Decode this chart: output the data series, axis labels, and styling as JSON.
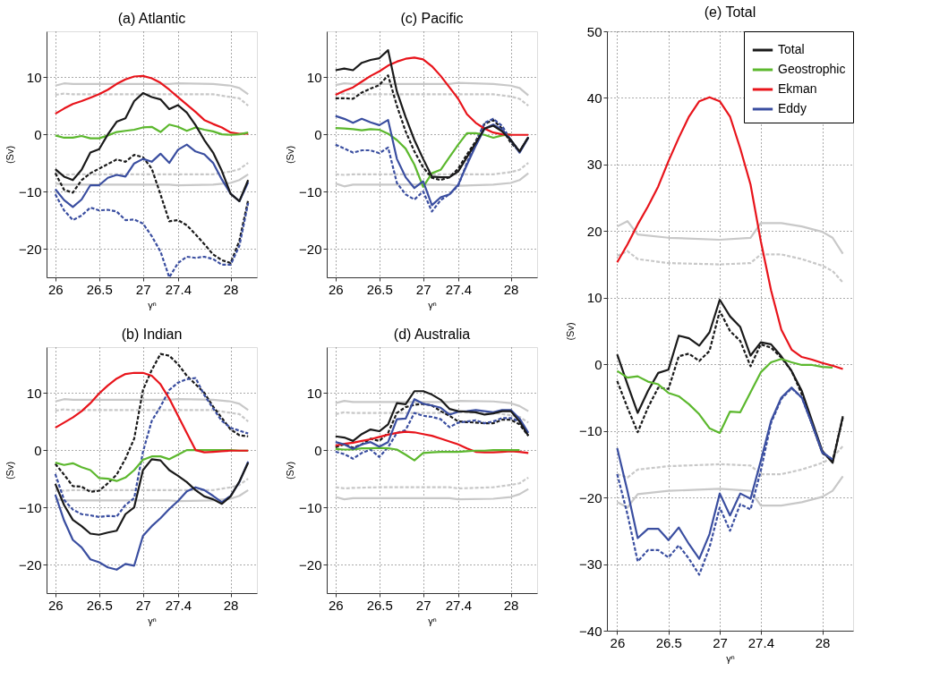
{
  "chart_data": [
    {
      "type": "line",
      "title": "(a) Atlantic",
      "xlabel": "γⁿ",
      "ylabel": "(Sv)",
      "xlim": [
        25.9,
        28.3
      ],
      "xticks": [
        26,
        26.5,
        27,
        27.4,
        28
      ],
      "ylim": [
        -25,
        18
      ],
      "yticks": [
        -20,
        -10,
        0,
        10
      ],
      "grid": true,
      "legend": false,
      "x": [
        26.0,
        26.1,
        26.2,
        26.3,
        26.4,
        26.5,
        26.6,
        26.7,
        26.8,
        26.9,
        27.0,
        27.1,
        27.2,
        27.3,
        27.4,
        27.5,
        27.6,
        27.7,
        27.8,
        27.9,
        28.0,
        28.1,
        28.2
      ],
      "series": [
        {
          "color": "#c8c8c8",
          "x": [
            26,
            26.1,
            26.2,
            26.5,
            27,
            27.3,
            27.4,
            27.8,
            28,
            28.1,
            28.2
          ],
          "values": [
            8.5,
            8.9,
            8.8,
            8.8,
            8.8,
            8.8,
            8.9,
            8.8,
            8.5,
            8.1,
            7.0
          ]
        },
        {
          "color": "#c8c8c8",
          "line_style": "dashed",
          "x": [
            26,
            26.1,
            26.2,
            26.5,
            27,
            27.3,
            27.4,
            27.8,
            28,
            28.1,
            28.2
          ],
          "values": [
            6.9,
            7.1,
            7.0,
            7.0,
            7.0,
            7.0,
            7.0,
            7.0,
            6.5,
            6.3,
            5.0
          ]
        },
        {
          "color": "#c8c8c8",
          "line_style": "dashed",
          "x": [
            26,
            26.1,
            26.2,
            26.5,
            27,
            27.3,
            27.4,
            27.8,
            28,
            28.1,
            28.2
          ],
          "values": [
            -6.9,
            -7.1,
            -7.0,
            -7.0,
            -7.0,
            -7.0,
            -7.0,
            -7.0,
            -6.5,
            -6.1,
            -5.0
          ]
        },
        {
          "color": "#c8c8c8",
          "x": [
            26,
            26.1,
            26.2,
            26.5,
            27,
            27.3,
            27.4,
            27.8,
            28,
            28.1,
            28.2
          ],
          "values": [
            -8.6,
            -8.8,
            -8.8,
            -8.8,
            -8.8,
            -8.8,
            -8.9,
            -8.8,
            -8.5,
            -8.0,
            -7.0
          ]
        },
        {
          "color": "#1a1a1a",
          "line_style": "dashed",
          "values": [
            -6.8,
            -9.7,
            -10.2,
            -8.0,
            -6.8,
            -6.0,
            -5.2,
            -4.4,
            -4.8,
            -3.6,
            -4.0,
            -6.0,
            -10.5,
            -15.2,
            -15.0,
            -15.9,
            -17.5,
            -19.2,
            -21.0,
            -22.0,
            -22.5,
            -18.6,
            -11.5
          ]
        },
        {
          "color": "#3a4ea0",
          "line_style": "dashed",
          "values": [
            -10.5,
            -13.3,
            -15.0,
            -14.2,
            -12.8,
            -13.3,
            -13.2,
            -13.5,
            -15.0,
            -14.9,
            -15.6,
            -17.8,
            -20.5,
            -25.0,
            -22.5,
            -21.4,
            -21.6,
            -21.4,
            -21.8,
            -22.8,
            -22.8,
            -19.5,
            -12.0
          ]
        },
        {
          "color": "#e8141b",
          "values": [
            3.6,
            4.5,
            5.3,
            5.8,
            6.4,
            7.0,
            7.8,
            8.8,
            9.6,
            10.1,
            10.2,
            9.8,
            9.0,
            7.8,
            6.5,
            5.2,
            3.9,
            2.5,
            1.8,
            1.2,
            0.3,
            0.1,
            0.1
          ]
        },
        {
          "color": "#5cb82e",
          "values": [
            -0.2,
            -0.6,
            -0.6,
            -0.3,
            -0.7,
            -0.7,
            -0.2,
            0.4,
            0.6,
            0.8,
            1.2,
            1.3,
            0.4,
            1.7,
            1.3,
            0.6,
            1.2,
            0.8,
            0.5,
            0.0,
            -0.1,
            0.0,
            0.3
          ]
        },
        {
          "color": "#3a4ea0",
          "values": [
            -9.6,
            -11.5,
            -12.7,
            -11.4,
            -8.9,
            -8.9,
            -7.6,
            -7.1,
            -7.4,
            -5.1,
            -4.3,
            -4.8,
            -3.4,
            -5.0,
            -2.7,
            -1.8,
            -3.0,
            -3.5,
            -5.0,
            -7.9,
            -10.4,
            -11.7,
            -8.4
          ]
        },
        {
          "color": "#1a1a1a",
          "values": [
            -6.1,
            -7.4,
            -8.0,
            -6.2,
            -3.2,
            -2.6,
            0.0,
            2.2,
            2.8,
            5.8,
            7.2,
            6.5,
            6.1,
            4.4,
            5.1,
            3.8,
            1.6,
            -1.0,
            -3.2,
            -6.4,
            -10.4,
            -11.7,
            -8.0
          ]
        }
      ]
    },
    {
      "type": "line",
      "title": "(b) Indian",
      "xlabel": "γⁿ",
      "ylabel": "(Sv)",
      "xlim": [
        25.9,
        28.3
      ],
      "xticks": [
        26,
        26.5,
        27,
        27.4,
        28
      ],
      "ylim": [
        -25,
        18
      ],
      "yticks": [
        -20,
        -10,
        0,
        10
      ],
      "grid": true,
      "legend": false,
      "x": [
        26.0,
        26.1,
        26.2,
        26.3,
        26.4,
        26.5,
        26.6,
        26.7,
        26.8,
        26.9,
        27.0,
        27.1,
        27.2,
        27.3,
        27.4,
        27.5,
        27.6,
        27.7,
        27.8,
        27.9,
        28.0,
        28.1,
        28.2
      ],
      "series": [
        {
          "color": "#c8c8c8",
          "x": [
            26,
            26.1,
            26.2,
            26.5,
            27,
            27.3,
            27.4,
            27.8,
            28,
            28.1,
            28.2
          ],
          "values": [
            8.5,
            8.9,
            8.8,
            8.8,
            8.8,
            8.8,
            8.9,
            8.8,
            8.5,
            8.1,
            7.0
          ]
        },
        {
          "color": "#c8c8c8",
          "line_style": "dashed",
          "x": [
            26,
            26.1,
            26.2,
            26.5,
            27,
            27.3,
            27.4,
            27.8,
            28,
            28.1,
            28.2
          ],
          "values": [
            6.9,
            7.1,
            7.0,
            7.0,
            7.0,
            7.0,
            7.0,
            7.0,
            6.5,
            6.3,
            5.0
          ]
        },
        {
          "color": "#c8c8c8",
          "line_style": "dashed",
          "x": [
            26,
            26.1,
            26.2,
            26.5,
            27,
            27.3,
            27.4,
            27.8,
            28,
            28.1,
            28.2
          ],
          "values": [
            -6.9,
            -7.1,
            -7.0,
            -7.0,
            -7.0,
            -7.0,
            -7.0,
            -7.0,
            -6.5,
            -6.1,
            -5.0
          ]
        },
        {
          "color": "#c8c8c8",
          "x": [
            26,
            26.1,
            26.2,
            26.5,
            27,
            27.3,
            27.4,
            27.8,
            28,
            28.1,
            28.2
          ],
          "values": [
            -8.6,
            -8.8,
            -8.8,
            -8.8,
            -8.8,
            -8.8,
            -8.9,
            -8.8,
            -8.5,
            -8.0,
            -7.0
          ]
        },
        {
          "color": "#1a1a1a",
          "line_style": "dashed",
          "values": [
            -2.4,
            -4.3,
            -6.3,
            -6.4,
            -7.3,
            -7.1,
            -5.8,
            -4.3,
            -1.5,
            2.0,
            10.5,
            14.0,
            16.8,
            16.5,
            15.0,
            13.0,
            11.5,
            10.0,
            7.6,
            5.6,
            3.6,
            2.6,
            2.4
          ]
        },
        {
          "color": "#3a4ea0",
          "line_style": "dashed",
          "values": [
            -4.2,
            -8.7,
            -10.4,
            -11.2,
            -11.4,
            -11.7,
            -11.5,
            -11.6,
            -9.6,
            -8.4,
            -0.3,
            5.1,
            7.6,
            10.5,
            11.8,
            12.4,
            12.6,
            9.6,
            7.3,
            5.1,
            3.9,
            3.4,
            2.9
          ]
        },
        {
          "color": "#5cb82e",
          "values": [
            -2.2,
            -2.6,
            -2.3,
            -3.0,
            -3.5,
            -4.9,
            -5.0,
            -5.4,
            -4.8,
            -3.5,
            -1.7,
            -1.1,
            -1.1,
            -1.6,
            -0.8,
            0.0,
            0.0,
            0.0,
            0.0,
            0.0,
            0.0,
            -0.1,
            -0.1
          ]
        },
        {
          "color": "#e8141b",
          "values": [
            3.9,
            4.8,
            5.7,
            6.8,
            8.2,
            9.9,
            11.3,
            12.5,
            13.3,
            13.5,
            13.5,
            13.0,
            11.5,
            9.0,
            6.0,
            3.0,
            0.0,
            -0.4,
            -0.3,
            -0.2,
            -0.1,
            -0.1,
            -0.1
          ]
        },
        {
          "color": "#3a4ea0",
          "values": [
            -7.8,
            -12.3,
            -15.7,
            -17.0,
            -19.1,
            -19.6,
            -20.5,
            -20.9,
            -19.9,
            -20.2,
            -15.0,
            -13.3,
            -11.9,
            -10.3,
            -8.9,
            -7.2,
            -6.5,
            -7.0,
            -8.0,
            -9.1,
            -8.0,
            -5.6,
            -2.0
          ]
        },
        {
          "color": "#1a1a1a",
          "values": [
            -5.9,
            -9.6,
            -12.2,
            -13.3,
            -14.6,
            -14.8,
            -14.4,
            -14.1,
            -11.2,
            -10.0,
            -3.5,
            -1.6,
            -1.8,
            -3.5,
            -4.5,
            -5.6,
            -7.0,
            -8.1,
            -8.6,
            -9.4,
            -8.1,
            -5.5,
            -2.2
          ]
        }
      ]
    },
    {
      "type": "line",
      "title": "(c) Pacific",
      "xlabel": "γⁿ",
      "ylabel": "(Sv)",
      "xlim": [
        25.9,
        28.3
      ],
      "xticks": [
        26,
        26.5,
        27,
        27.4,
        28
      ],
      "ylim": [
        -25,
        18
      ],
      "yticks": [
        -20,
        -10,
        0,
        10
      ],
      "grid": true,
      "legend": false,
      "x": [
        26.0,
        26.1,
        26.2,
        26.3,
        26.4,
        26.5,
        26.6,
        26.7,
        26.8,
        26.9,
        27.0,
        27.1,
        27.2,
        27.3,
        27.4,
        27.5,
        27.6,
        27.7,
        27.8,
        27.9,
        28.0,
        28.1,
        28.2
      ],
      "series": [
        {
          "color": "#c8c8c8",
          "x": [
            26,
            26.1,
            26.2,
            26.5,
            27,
            27.3,
            27.4,
            27.8,
            28,
            28.1,
            28.2
          ],
          "values": [
            8.6,
            8.9,
            8.8,
            8.8,
            8.8,
            8.8,
            9.0,
            8.8,
            8.5,
            8.1,
            6.8
          ]
        },
        {
          "color": "#c8c8c8",
          "line_style": "dashed",
          "x": [
            26,
            26.1,
            26.2,
            26.5,
            27,
            27.3,
            27.4,
            27.8,
            28,
            28.1,
            28.2
          ],
          "values": [
            7.0,
            7.1,
            7.0,
            7.0,
            7.0,
            7.0,
            7.0,
            7.0,
            6.6,
            6.2,
            5.0
          ]
        },
        {
          "color": "#c8c8c8",
          "line_style": "dashed",
          "x": [
            26,
            26.1,
            26.2,
            26.5,
            27,
            27.3,
            27.4,
            27.8,
            28,
            28.1,
            28.2
          ],
          "values": [
            -7.0,
            -7.1,
            -7.0,
            -7.0,
            -7.0,
            -7.0,
            -7.0,
            -7.0,
            -6.6,
            -6.2,
            -5.0
          ]
        },
        {
          "color": "#c8c8c8",
          "x": [
            26,
            26.1,
            26.2,
            26.5,
            27,
            27.3,
            27.4,
            27.8,
            28,
            28.1,
            28.2
          ],
          "values": [
            -8.6,
            -9.1,
            -8.8,
            -8.8,
            -8.8,
            -8.8,
            -9.0,
            -8.8,
            -8.5,
            -8.0,
            -6.8
          ]
        },
        {
          "color": "#1a1a1a",
          "line_style": "dashed",
          "values": [
            6.3,
            6.3,
            6.2,
            7.3,
            8.0,
            8.6,
            10.3,
            5.0,
            0.5,
            -3.0,
            -5.8,
            -7.6,
            -8.0,
            -7.5,
            -6.0,
            -3.5,
            -1.2,
            1.8,
            2.5,
            1.0,
            -1.5,
            -3.0,
            -0.5
          ]
        },
        {
          "color": "#3a4ea0",
          "line_style": "dashed",
          "values": [
            -1.8,
            -2.5,
            -3.2,
            -2.8,
            -2.8,
            -3.3,
            -2.3,
            -8.5,
            -10.5,
            -11.4,
            -10.0,
            -13.5,
            -11.5,
            -10.5,
            -9.0,
            -5.0,
            -1.5,
            2.0,
            2.7,
            1.5,
            -1.0,
            -3.0,
            -0.5
          ]
        },
        {
          "color": "#5cb82e",
          "values": [
            1.1,
            1.0,
            0.9,
            0.7,
            0.9,
            0.8,
            0.1,
            -1.0,
            -2.5,
            -5.3,
            -9.2,
            -6.8,
            -6.2,
            -4.0,
            -1.8,
            0.2,
            0.2,
            -0.1,
            -0.6,
            -0.2,
            0.0,
            null,
            null
          ]
        },
        {
          "color": "#e8141b",
          "values": [
            6.9,
            7.6,
            8.2,
            9.2,
            10.2,
            11.0,
            12.0,
            12.7,
            13.2,
            13.4,
            13.1,
            11.9,
            10.2,
            8.2,
            6.2,
            3.5,
            2.0,
            1.0,
            0.3,
            0.0,
            -0.1,
            -0.1,
            -0.1
          ]
        },
        {
          "color": "#3a4ea0",
          "values": [
            3.2,
            2.7,
            2.0,
            2.7,
            2.1,
            1.6,
            2.5,
            -4.3,
            -7.5,
            -9.4,
            -8.2,
            -12.4,
            -11.0,
            -10.5,
            -8.8,
            -5.3,
            -2.0,
            1.0,
            1.7,
            0.8,
            -1.0,
            -3.2,
            -0.6
          ]
        },
        {
          "color": "#1a1a1a",
          "values": [
            11.2,
            11.5,
            11.2,
            12.5,
            13.0,
            13.3,
            14.7,
            7.5,
            3.0,
            -1.0,
            -4.3,
            -7.4,
            -7.5,
            -7.5,
            -6.5,
            -4.0,
            -1.5,
            1.0,
            1.5,
            0.5,
            -1.0,
            -3.0,
            -0.5
          ]
        }
      ]
    },
    {
      "type": "line",
      "title": "(d) Australia",
      "xlabel": "γⁿ",
      "ylabel": "(Sv)",
      "xlim": [
        25.9,
        28.3
      ],
      "xticks": [
        26,
        26.5,
        27,
        27.4,
        28
      ],
      "ylim": [
        -25,
        18
      ],
      "yticks": [
        -20,
        -10,
        0,
        10
      ],
      "grid": true,
      "legend": false,
      "x": [
        26.0,
        26.1,
        26.2,
        26.3,
        26.4,
        26.5,
        26.6,
        26.7,
        26.8,
        26.9,
        27.0,
        27.1,
        27.2,
        27.3,
        27.4,
        27.5,
        27.6,
        27.7,
        27.8,
        27.9,
        28.0,
        28.1,
        28.2
      ],
      "series": [
        {
          "color": "#c8c8c8",
          "x": [
            26,
            26.1,
            26.2,
            26.5,
            27,
            27.3,
            27.4,
            27.8,
            28,
            28.1,
            28.2
          ],
          "values": [
            8.2,
            8.6,
            8.4,
            8.4,
            8.4,
            8.4,
            8.6,
            8.5,
            8.2,
            7.7,
            6.8
          ]
        },
        {
          "color": "#c8c8c8",
          "line_style": "dashed",
          "x": [
            26,
            26.1,
            26.2,
            26.5,
            27,
            27.3,
            27.4,
            27.8,
            28,
            28.1,
            28.2
          ],
          "values": [
            6.3,
            6.6,
            6.5,
            6.5,
            6.5,
            6.5,
            6.6,
            6.5,
            6.1,
            5.8,
            4.8
          ]
        },
        {
          "color": "#c8c8c8",
          "line_style": "dashed",
          "x": [
            26,
            26.1,
            26.2,
            26.5,
            27,
            27.3,
            27.4,
            27.8,
            28,
            28.1,
            28.2
          ],
          "values": [
            -6.5,
            -6.7,
            -6.6,
            -6.5,
            -6.5,
            -6.5,
            -6.7,
            -6.5,
            -6.1,
            -5.8,
            -4.8
          ]
        },
        {
          "color": "#c8c8c8",
          "x": [
            26,
            26.1,
            26.2,
            26.5,
            27,
            27.3,
            27.4,
            27.8,
            28,
            28.1,
            28.2
          ],
          "values": [
            -8.2,
            -8.6,
            -8.4,
            -8.4,
            -8.4,
            -8.4,
            -8.6,
            -8.5,
            -8.2,
            -7.7,
            -6.8
          ]
        },
        {
          "color": "#1a1a1a",
          "line_style": "dashed",
          "values": [
            0.5,
            1.0,
            0.4,
            1.0,
            2.0,
            1.6,
            3.0,
            6.5,
            7.5,
            7.9,
            8.1,
            7.8,
            6.8,
            6.0,
            5.0,
            4.9,
            4.8,
            4.7,
            4.7,
            5.3,
            5.3,
            4.5,
            2.5
          ]
        },
        {
          "color": "#3a4ea0",
          "line_style": "dashed",
          "values": [
            -0.3,
            -0.7,
            -1.5,
            -0.5,
            0.1,
            -1.2,
            0.5,
            3.0,
            3.5,
            6.5,
            6.0,
            5.8,
            5.4,
            4.0,
            4.8,
            5.0,
            5.2,
            4.7,
            5.0,
            5.6,
            5.6,
            5.0,
            2.8
          ]
        },
        {
          "color": "#e8141b",
          "values": [
            0.8,
            1.1,
            1.3,
            1.6,
            1.9,
            2.3,
            2.7,
            3.0,
            3.2,
            3.1,
            2.8,
            2.5,
            2.0,
            1.5,
            1.0,
            0.3,
            -0.3,
            -0.4,
            -0.4,
            -0.3,
            -0.2,
            -0.3,
            -0.5
          ]
        },
        {
          "color": "#5cb82e",
          "values": [
            0.2,
            0.1,
            0.1,
            0.3,
            0.3,
            0.4,
            0.3,
            0.1,
            -0.8,
            -1.8,
            -0.5,
            -0.4,
            -0.3,
            -0.3,
            -0.3,
            -0.2,
            -0.1,
            -0.1,
            0.0,
            0.0,
            0.0,
            0.0,
            null
          ]
        },
        {
          "color": "#3a4ea0",
          "values": [
            1.4,
            1.0,
            0.2,
            1.0,
            1.4,
            0.6,
            1.4,
            5.4,
            5.5,
            8.9,
            8.1,
            7.8,
            7.4,
            6.2,
            6.7,
            6.8,
            7.0,
            6.8,
            6.6,
            7.0,
            7.0,
            5.5,
            3.0
          ]
        },
        {
          "color": "#1a1a1a",
          "values": [
            2.4,
            2.2,
            1.6,
            2.8,
            3.6,
            3.3,
            4.5,
            8.2,
            8.0,
            10.3,
            10.3,
            9.7,
            8.8,
            7.2,
            6.8,
            6.7,
            6.6,
            6.2,
            6.4,
            6.8,
            6.8,
            5.0,
            2.5
          ]
        }
      ]
    },
    {
      "type": "line",
      "title": "(e) Total",
      "xlabel": "γⁿ",
      "ylabel": "(Sv)",
      "xlim": [
        25.9,
        28.3
      ],
      "xticks": [
        26,
        26.5,
        27,
        27.4,
        28
      ],
      "ylim": [
        -40,
        50
      ],
      "yticks": [
        -40,
        -30,
        -20,
        -10,
        0,
        10,
        20,
        30,
        40,
        50
      ],
      "grid": true,
      "legend": "top right",
      "x": [
        26.0,
        26.1,
        26.2,
        26.3,
        26.4,
        26.5,
        26.6,
        26.7,
        26.8,
        26.9,
        27.0,
        27.1,
        27.2,
        27.3,
        27.4,
        27.5,
        27.6,
        27.7,
        27.8,
        27.9,
        28.0,
        28.1,
        28.2
      ],
      "series": [
        {
          "color": "#c8c8c8",
          "x": [
            26,
            26.1,
            26.2,
            26.5,
            27,
            27.3,
            27.4,
            27.6,
            27.8,
            28,
            28.1,
            28.2
          ],
          "values": [
            20.7,
            21.5,
            19.5,
            19.0,
            18.7,
            19.0,
            21.2,
            21.2,
            20.7,
            19.9,
            19.0,
            16.6
          ]
        },
        {
          "color": "#c8c8c8",
          "line_style": "dashed",
          "x": [
            26,
            26.1,
            26.2,
            26.5,
            27,
            27.3,
            27.4,
            27.6,
            27.8,
            28,
            28.1,
            28.2
          ],
          "values": [
            16.3,
            17.0,
            15.8,
            15.2,
            15.0,
            15.2,
            16.5,
            16.5,
            15.8,
            14.8,
            14.0,
            12.3
          ]
        },
        {
          "color": "#c8c8c8",
          "line_style": "dashed",
          "x": [
            26,
            26.1,
            26.2,
            26.5,
            27,
            27.3,
            27.4,
            27.6,
            27.8,
            28,
            28.1,
            28.2
          ],
          "values": [
            -16.5,
            -17.0,
            -15.8,
            -15.3,
            -15.0,
            -15.2,
            -16.5,
            -16.5,
            -15.8,
            -14.8,
            -14.0,
            -12.3
          ]
        },
        {
          "color": "#c8c8c8",
          "x": [
            26,
            26.1,
            26.2,
            26.5,
            27,
            27.3,
            27.4,
            27.6,
            27.8,
            28,
            28.1,
            28.2
          ],
          "values": [
            -20.7,
            -21.5,
            -19.5,
            -19.0,
            -18.7,
            -19.0,
            -21.2,
            -21.2,
            -20.7,
            -19.9,
            -19.0,
            -16.8
          ]
        },
        {
          "color": "#1a1a1a",
          "line_style": "dashed",
          "values": [
            -2.5,
            -6.5,
            -10.2,
            -6.5,
            -3.5,
            -3.7,
            1.2,
            1.6,
            0.5,
            2.0,
            8.0,
            5.0,
            3.5,
            -0.3,
            3.0,
            2.5,
            1.0,
            -1.0,
            -4.5,
            -9.0,
            -13.3,
            -14.5,
            -8.0
          ]
        },
        {
          "color": "#3a4ea0",
          "line_style": "dashed",
          "values": [
            -16.5,
            -22.5,
            -29.6,
            -27.9,
            -27.9,
            -29.0,
            -27.2,
            -29.2,
            -31.6,
            -27.5,
            -21.5,
            -25.0,
            -21.0,
            -21.8,
            -16.0,
            -8.8,
            -5.2,
            -3.6,
            -5.0,
            -9.0,
            -13.3,
            -14.3,
            null
          ]
        },
        {
          "name": "Total",
          "color": "#1a1a1a",
          "values": [
            1.5,
            -3.0,
            -7.3,
            -4.0,
            -1.3,
            -0.8,
            4.3,
            3.9,
            2.8,
            4.8,
            9.7,
            7.2,
            5.6,
            1.3,
            3.3,
            3.0,
            1.2,
            -1.0,
            -4.0,
            -8.5,
            -13.0,
            -14.8,
            -7.8
          ]
        },
        {
          "name": "Geostrophic",
          "color": "#5cb82e",
          "values": [
            -1.0,
            -2.0,
            -1.8,
            -2.6,
            -3.0,
            -4.3,
            -4.8,
            -6.0,
            -7.5,
            -9.6,
            -10.3,
            -7.1,
            -7.2,
            -4.2,
            -1.2,
            0.3,
            0.8,
            0.3,
            -0.1,
            -0.1,
            -0.4,
            -0.5,
            null
          ]
        },
        {
          "name": "Ekman",
          "color": "#e8141b",
          "values": [
            15.3,
            18.0,
            21.0,
            23.7,
            26.7,
            30.5,
            34.0,
            37.2,
            39.5,
            40.1,
            39.5,
            37.2,
            32.4,
            27.0,
            18.5,
            11.1,
            5.2,
            2.2,
            1.1,
            0.7,
            0.2,
            -0.2,
            -0.7
          ]
        },
        {
          "name": "Eddy",
          "color": "#3a4ea0",
          "values": [
            -12.6,
            -19.0,
            -26.1,
            -24.7,
            -24.7,
            -26.4,
            -24.5,
            -27.0,
            -29.2,
            -25.5,
            -19.4,
            -22.7,
            -19.4,
            -20.2,
            -14.5,
            -8.5,
            -5.0,
            -3.5,
            -5.0,
            -9.0,
            -13.2,
            -14.3,
            null
          ]
        }
      ]
    }
  ]
}
